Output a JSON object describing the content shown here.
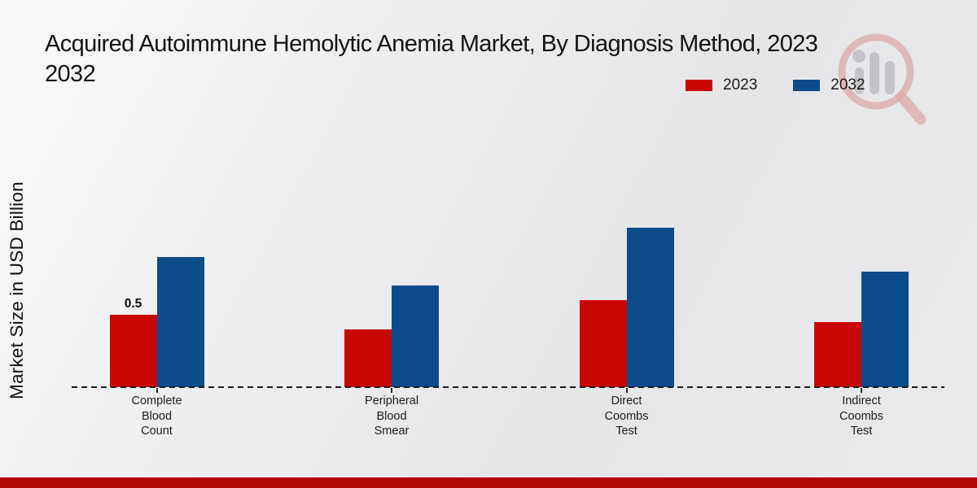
{
  "header": {
    "title_line1": "Acquired Autoimmune Hemolytic Anemia Market, By Diagnosis Method, 2023",
    "title_line2": "2032"
  },
  "legend": {
    "items": [
      {
        "label": "2023",
        "color": "#c90606"
      },
      {
        "label": "2032",
        "color": "#0d4c8a"
      }
    ]
  },
  "chart_data": {
    "type": "bar",
    "title": "Acquired Autoimmune Hemolytic Anemia Market, By Diagnosis Method, 2023 2032",
    "ylabel": "Market Size in USD Billion",
    "categories": [
      "Complete Blood Count",
      "Peripheral Blood Smear",
      "Direct Coombs Test",
      "Indirect Coombs Test"
    ],
    "series": [
      {
        "name": "2023",
        "color": "#c90606",
        "values": [
          0.5,
          0.4,
          0.6,
          0.45
        ]
      },
      {
        "name": "2032",
        "color": "#0d4c8a",
        "values": [
          0.9,
          0.7,
          1.1,
          0.8
        ]
      }
    ],
    "data_labels": [
      {
        "category_index": 0,
        "series_index": 0,
        "text": "0.5"
      }
    ],
    "axis": {
      "baseline_style": "dashed",
      "gridlines": false,
      "y_tick_labels_visible": false
    },
    "legend_position": "top-right",
    "footer_bar_color": "#b50808"
  }
}
